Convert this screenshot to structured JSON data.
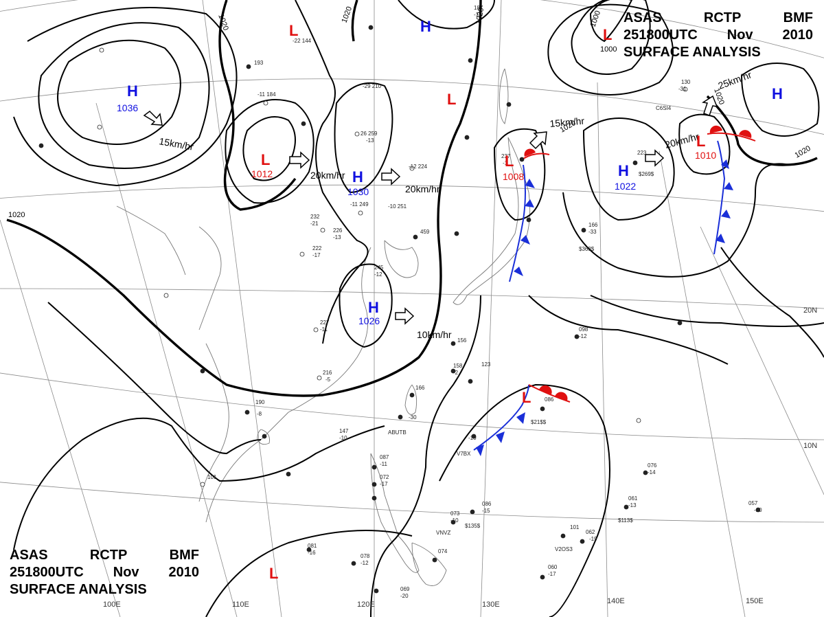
{
  "header_top": {
    "product": "ASAS",
    "station": "RCTP",
    "office": "BMF",
    "time": "251800UTC",
    "month": "Nov",
    "year": "2010",
    "title": "SURFACE ANALYSIS"
  },
  "header_bottom": {
    "product": "ASAS",
    "station": "RCTP",
    "office": "BMF",
    "time": "251800UTC",
    "month": "Nov",
    "year": "2010",
    "title": "SURFACE ANALYSIS"
  },
  "colors": {
    "high": "#1010e0",
    "low": "#e01010",
    "cold_front": "#1a2fd8",
    "warm_front": "#e01010",
    "isobar": "#000000",
    "grid": "#8a8a8a",
    "coast": "#777777"
  },
  "pressure_centers": [
    {
      "id": "h1",
      "type": "H",
      "value": "1036"
    },
    {
      "id": "l1",
      "type": "L",
      "value": "1012"
    },
    {
      "id": "h2",
      "type": "H",
      "value": "1030"
    },
    {
      "id": "h3",
      "type": "H",
      "value": "1026"
    },
    {
      "id": "l2",
      "type": "L",
      "value": ""
    },
    {
      "id": "l3",
      "type": "L",
      "value": ""
    },
    {
      "id": "h4",
      "type": "H",
      "value": ""
    },
    {
      "id": "l4",
      "type": "L",
      "value": "1008"
    },
    {
      "id": "h5",
      "type": "H",
      "value": "1022"
    },
    {
      "id": "l5",
      "type": "L",
      "value": ""
    },
    {
      "id": "h6",
      "type": "H",
      "value": ""
    },
    {
      "id": "l6",
      "type": "L",
      "value": "1010"
    },
    {
      "id": "l7",
      "type": "L",
      "value": ""
    },
    {
      "id": "l8",
      "type": "L",
      "value": ""
    }
  ],
  "motion_labels": [
    {
      "id": "m1",
      "text": "15km/hr"
    },
    {
      "id": "m2",
      "text": "20km/hr"
    },
    {
      "id": "m3",
      "text": "20km/hr"
    },
    {
      "id": "m4",
      "text": "10km/hr"
    },
    {
      "id": "m5",
      "text": "15km/hr"
    },
    {
      "id": "m6",
      "text": "20km/hr"
    },
    {
      "id": "m7",
      "text": "25km/hr"
    }
  ],
  "isobar_labels": [
    {
      "id": "i1",
      "text": "1020"
    },
    {
      "id": "i2",
      "text": "1020"
    },
    {
      "id": "i3",
      "text": "1020"
    },
    {
      "id": "i4",
      "text": "1020"
    },
    {
      "id": "i5",
      "text": "1000"
    },
    {
      "id": "i6",
      "text": "1000"
    },
    {
      "id": "i7",
      "text": "1020"
    },
    {
      "id": "i8",
      "text": "1020"
    },
    {
      "id": "i9",
      "text": "1020"
    }
  ],
  "longitude_labels": [
    "100E",
    "110E",
    "120E",
    "130E",
    "140E",
    "150E"
  ],
  "latitude_labels": [
    "20N",
    "10N"
  ],
  "station_samples": [
    "-22 144",
    "193",
    "-11 184",
    "-29 210",
    "26 259",
    "-13",
    "-12 224",
    "-11 249",
    "-10 251",
    "232",
    "-21",
    "222",
    "-17",
    "227",
    "-11",
    "216",
    "-5",
    "190",
    "-8",
    "147",
    "-10",
    "101",
    "156",
    "158",
    "-2",
    "166",
    "-30",
    "ABUTB",
    "V7BX",
    "-10",
    "087",
    "-11",
    "072",
    "-17",
    "073",
    "-10",
    "VNVZ",
    "086",
    "-15",
    "$135$",
    "081",
    "-16",
    "078",
    "-12",
    "069",
    "-20",
    "074",
    "101",
    "062",
    "-19",
    "V2OS3",
    "060",
    "-17",
    "061",
    "-13",
    "$113$",
    "057",
    "-10",
    "076",
    "-14",
    "123",
    "098",
    "-12",
    "086",
    "$21$$",
    "166",
    "-33",
    "$363$",
    "223",
    "$269$",
    "C6SI4",
    "130",
    "-31",
    "187",
    "-12",
    "237",
    "-1",
    "245",
    "-12",
    "459",
    "226",
    "-13"
  ]
}
